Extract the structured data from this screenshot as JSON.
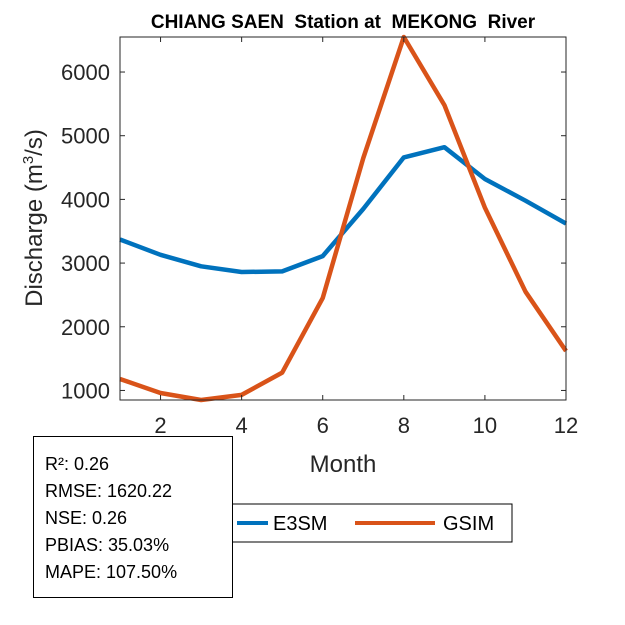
{
  "chart_data": {
    "type": "line",
    "title": "CHIANG SAEN  Station at  MEKONG  River",
    "xlabel": "Month",
    "ylabel_main": "Discharge (m",
    "ylabel_sup": "3",
    "ylabel_tail": "/s)",
    "xlim": [
      1,
      12
    ],
    "ylim": [
      850,
      6550
    ],
    "xticks": [
      2,
      4,
      6,
      8,
      10,
      12
    ],
    "yticks": [
      1000,
      2000,
      3000,
      4000,
      5000,
      6000
    ],
    "x": [
      1,
      2,
      3,
      4,
      5,
      6,
      7,
      8,
      9,
      10,
      11,
      12
    ],
    "series": [
      {
        "name": "E3SM",
        "color": "#0072BD",
        "values": [
          3370,
          3130,
          2950,
          2860,
          2870,
          3110,
          3850,
          4660,
          4820,
          4320,
          3980,
          3620
        ]
      },
      {
        "name": "GSIM",
        "color": "#D95319",
        "values": [
          1180,
          960,
          850,
          930,
          1280,
          2450,
          4650,
          6550,
          5480,
          3870,
          2550,
          1620
        ]
      }
    ],
    "grid": false,
    "legend_location": "bottom-right"
  },
  "stats": {
    "r2": "R²: 0.26",
    "rmse": "RMSE: 1620.22",
    "nse": "NSE: 0.26",
    "pbias": "PBIAS: 35.03%",
    "mape": "MAPE: 107.50%"
  }
}
